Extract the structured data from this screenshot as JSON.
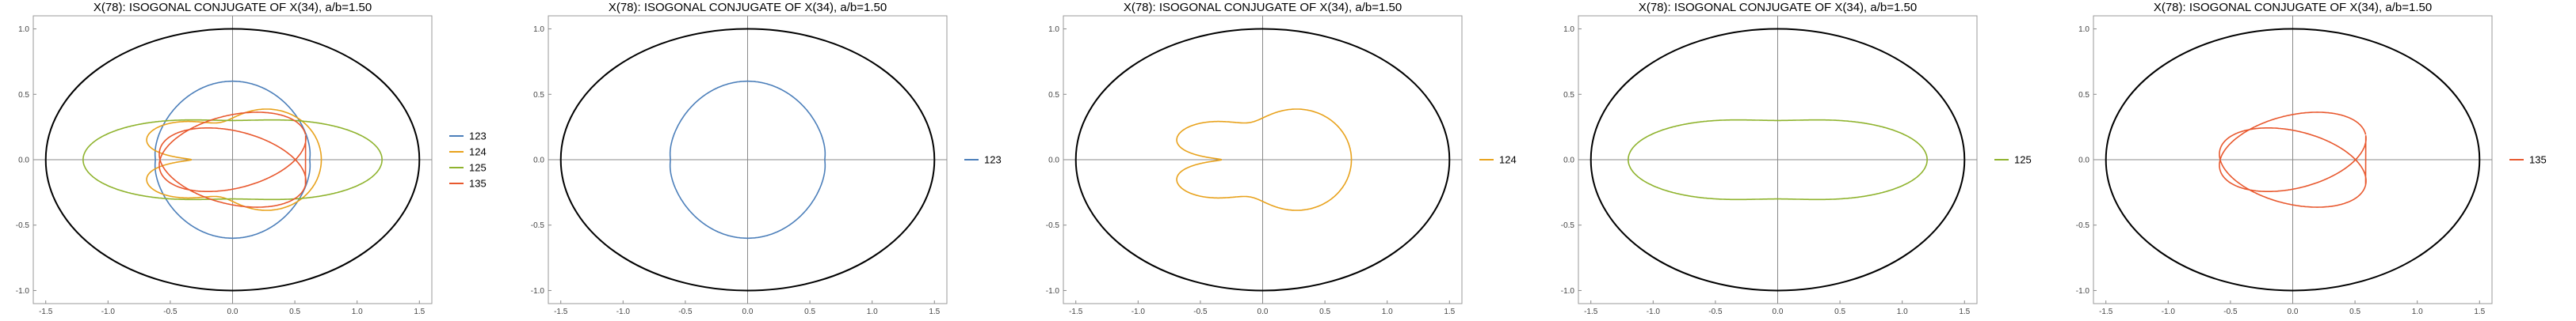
{
  "chart_data": [
    {
      "type": "line",
      "title": "X(78): ISOGONAL CONJUGATE OF X(34), a/b=1.50",
      "xlim": [
        -1.6,
        1.6
      ],
      "ylim": [
        -1.1,
        1.1
      ],
      "xticks": [
        "-1.5",
        "-1.0",
        "-0.5",
        "0.0",
        "0.5",
        "1.0",
        "1.5"
      ],
      "yticks": [
        "-1.0",
        "-0.5",
        "0.0",
        "0.5",
        "1.0"
      ],
      "ellipse": {
        "a": 1.5,
        "b": 1.0
      },
      "grid": false,
      "legend_position": "right",
      "series": [
        {
          "name": "123",
          "color": "#4c7fba",
          "kind": "p123"
        },
        {
          "name": "124",
          "color": "#e8a21c",
          "kind": "p124"
        },
        {
          "name": "125",
          "color": "#8fb32e",
          "kind": "p125"
        },
        {
          "name": "135",
          "color": "#e8582e",
          "kind": "p135"
        }
      ]
    },
    {
      "type": "line",
      "title": "X(78): ISOGONAL CONJUGATE OF X(34), a/b=1.50",
      "xlim": [
        -1.6,
        1.6
      ],
      "ylim": [
        -1.1,
        1.1
      ],
      "xticks": [
        "-1.5",
        "-1.0",
        "-0.5",
        "0.0",
        "0.5",
        "1.0",
        "1.5"
      ],
      "yticks": [
        "-1.0",
        "-0.5",
        "0.0",
        "0.5",
        "1.0"
      ],
      "ellipse": {
        "a": 1.5,
        "b": 1.0
      },
      "grid": false,
      "legend_position": "right",
      "series": [
        {
          "name": "123",
          "color": "#4c7fba",
          "kind": "p123"
        }
      ]
    },
    {
      "type": "line",
      "title": "X(78): ISOGONAL CONJUGATE OF X(34), a/b=1.50",
      "xlim": [
        -1.6,
        1.6
      ],
      "ylim": [
        -1.1,
        1.1
      ],
      "xticks": [
        "-1.5",
        "-1.0",
        "-0.5",
        "0.0",
        "0.5",
        "1.0",
        "1.5"
      ],
      "yticks": [
        "-1.0",
        "-0.5",
        "0.0",
        "0.5",
        "1.0"
      ],
      "ellipse": {
        "a": 1.5,
        "b": 1.0
      },
      "grid": false,
      "legend_position": "right",
      "series": [
        {
          "name": "124",
          "color": "#e8a21c",
          "kind": "p124"
        }
      ]
    },
    {
      "type": "line",
      "title": "X(78): ISOGONAL CONJUGATE OF X(34), a/b=1.50",
      "xlim": [
        -1.6,
        1.6
      ],
      "ylim": [
        -1.1,
        1.1
      ],
      "xticks": [
        "-1.5",
        "-1.0",
        "-0.5",
        "0.0",
        "0.5",
        "1.0",
        "1.5"
      ],
      "yticks": [
        "-1.0",
        "-0.5",
        "0.0",
        "0.5",
        "1.0"
      ],
      "ellipse": {
        "a": 1.5,
        "b": 1.0
      },
      "grid": false,
      "legend_position": "right",
      "series": [
        {
          "name": "125",
          "color": "#8fb32e",
          "kind": "p125"
        }
      ]
    },
    {
      "type": "line",
      "title": "X(78): ISOGONAL CONJUGATE OF X(34), a/b=1.50",
      "xlim": [
        -1.6,
        1.6
      ],
      "ylim": [
        -1.1,
        1.1
      ],
      "xticks": [
        "-1.5",
        "-1.0",
        "-0.5",
        "0.0",
        "0.5",
        "1.0",
        "1.5"
      ],
      "yticks": [
        "-1.0",
        "-0.5",
        "0.0",
        "0.5",
        "1.0"
      ],
      "ellipse": {
        "a": 1.5,
        "b": 1.0
      },
      "grid": false,
      "legend_position": "right",
      "series": [
        {
          "name": "135",
          "color": "#e8582e",
          "kind": "p135"
        }
      ]
    }
  ]
}
